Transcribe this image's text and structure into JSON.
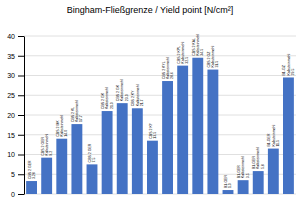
{
  "chart_data": {
    "type": "bar",
    "title": "Bingham-Fließgrenze / Yield point [N/cm²]",
    "categories": [
      "CBS 2 GER",
      "CBS 2 GER\nKalksteinmehl",
      "CBS 2 MK\nKalksteinmehl",
      "CBS 2 KL\nKalksteinmehl",
      "CBS 2 GER",
      "CBS 2 GK\nKalksteinmehl",
      "CBS 2 GK\nKalksteinmehl",
      "CBS 2 KY\nKalksteinmehl",
      "CBS 2 KY",
      "CBS 2 KYL\nKalksteinmehl",
      "CBS 2 KPL\nKalksteinmehl",
      "CBS 2 KAL\nKalksteinmehl",
      "CBS 2 GZ\nKalksteinmehl",
      "B1-GER",
      "B1-GER\nKalksteinmehl",
      "B1-GER\nKalksteinmehl",
      "B1-GER\nKalksteinmehl",
      "B1-GZ\nKalksteinmehl"
    ],
    "values": [
      3.28,
      9.2,
      14.0,
      17.7,
      7.5,
      21.0,
      23.0,
      21.7,
      13.5,
      28.6,
      32.5,
      34.5,
      31.5,
      1.0,
      3.5,
      5.8,
      11.5,
      29.5
    ],
    "value_labels": [
      "3.28",
      "9.2",
      "14.0",
      "17.7",
      "7.5",
      "21.0",
      "23.0",
      "21.7",
      "13.5",
      "28.6",
      "32.5",
      "34.5",
      "31.5",
      "1.0",
      "3.5",
      "5.8",
      "11.5",
      "29.5"
    ],
    "data_labels": true,
    "color": "#4472C4",
    "ylim": [
      0,
      40
    ],
    "yticks": [
      0,
      5,
      10,
      15,
      20,
      25,
      30,
      35,
      40
    ],
    "grid": true
  }
}
